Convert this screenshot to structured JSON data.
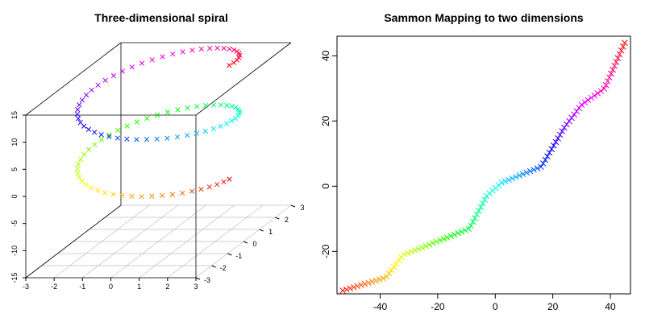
{
  "chart_data": [
    {
      "type": "scatter",
      "title": "Three-dimensional spiral",
      "marker": "x",
      "color_scale": "rainbow (red → yellow → green → cyan → blue → magenta → red along the curve)",
      "x_ticks": [
        "-3",
        "-2",
        "-1",
        "0",
        "1",
        "2",
        "3"
      ],
      "y_ticks": [
        "-3",
        "-2",
        "-1",
        "0",
        "1",
        "2",
        "3"
      ],
      "z_ticks": [
        "-15",
        "-10",
        "-5",
        "0",
        "5",
        "10",
        "15"
      ],
      "xlim": [
        -3,
        3
      ],
      "ylim": [
        -3,
        3
      ],
      "zlim": [
        -15,
        15
      ],
      "spiral": {
        "radius": 2.5,
        "z_start": -3.5,
        "z_end": 17.5,
        "turns": 2,
        "points": 100
      }
    },
    {
      "type": "scatter",
      "title": "Sammon Mapping to two dimensions",
      "marker": "x",
      "color_scale": "rainbow (red → yellow → green → cyan → blue → magenta → red along the curve)",
      "x_ticks": [
        "-40",
        "-20",
        "0",
        "20",
        "40"
      ],
      "y_ticks": [
        "-20",
        "0",
        "20",
        "40"
      ],
      "xlim": [
        -55,
        47
      ],
      "ylim": [
        -33,
        46
      ],
      "path": [
        [
          -53,
          -32
        ],
        [
          -38,
          -28
        ],
        [
          -32,
          -21
        ],
        [
          -26,
          -19
        ],
        [
          -9,
          -13
        ],
        [
          -3,
          -3
        ],
        [
          2,
          1
        ],
        [
          16,
          6
        ],
        [
          24,
          18
        ],
        [
          30,
          25
        ],
        [
          38,
          30
        ],
        [
          45,
          44
        ]
      ],
      "points": 100
    }
  ]
}
